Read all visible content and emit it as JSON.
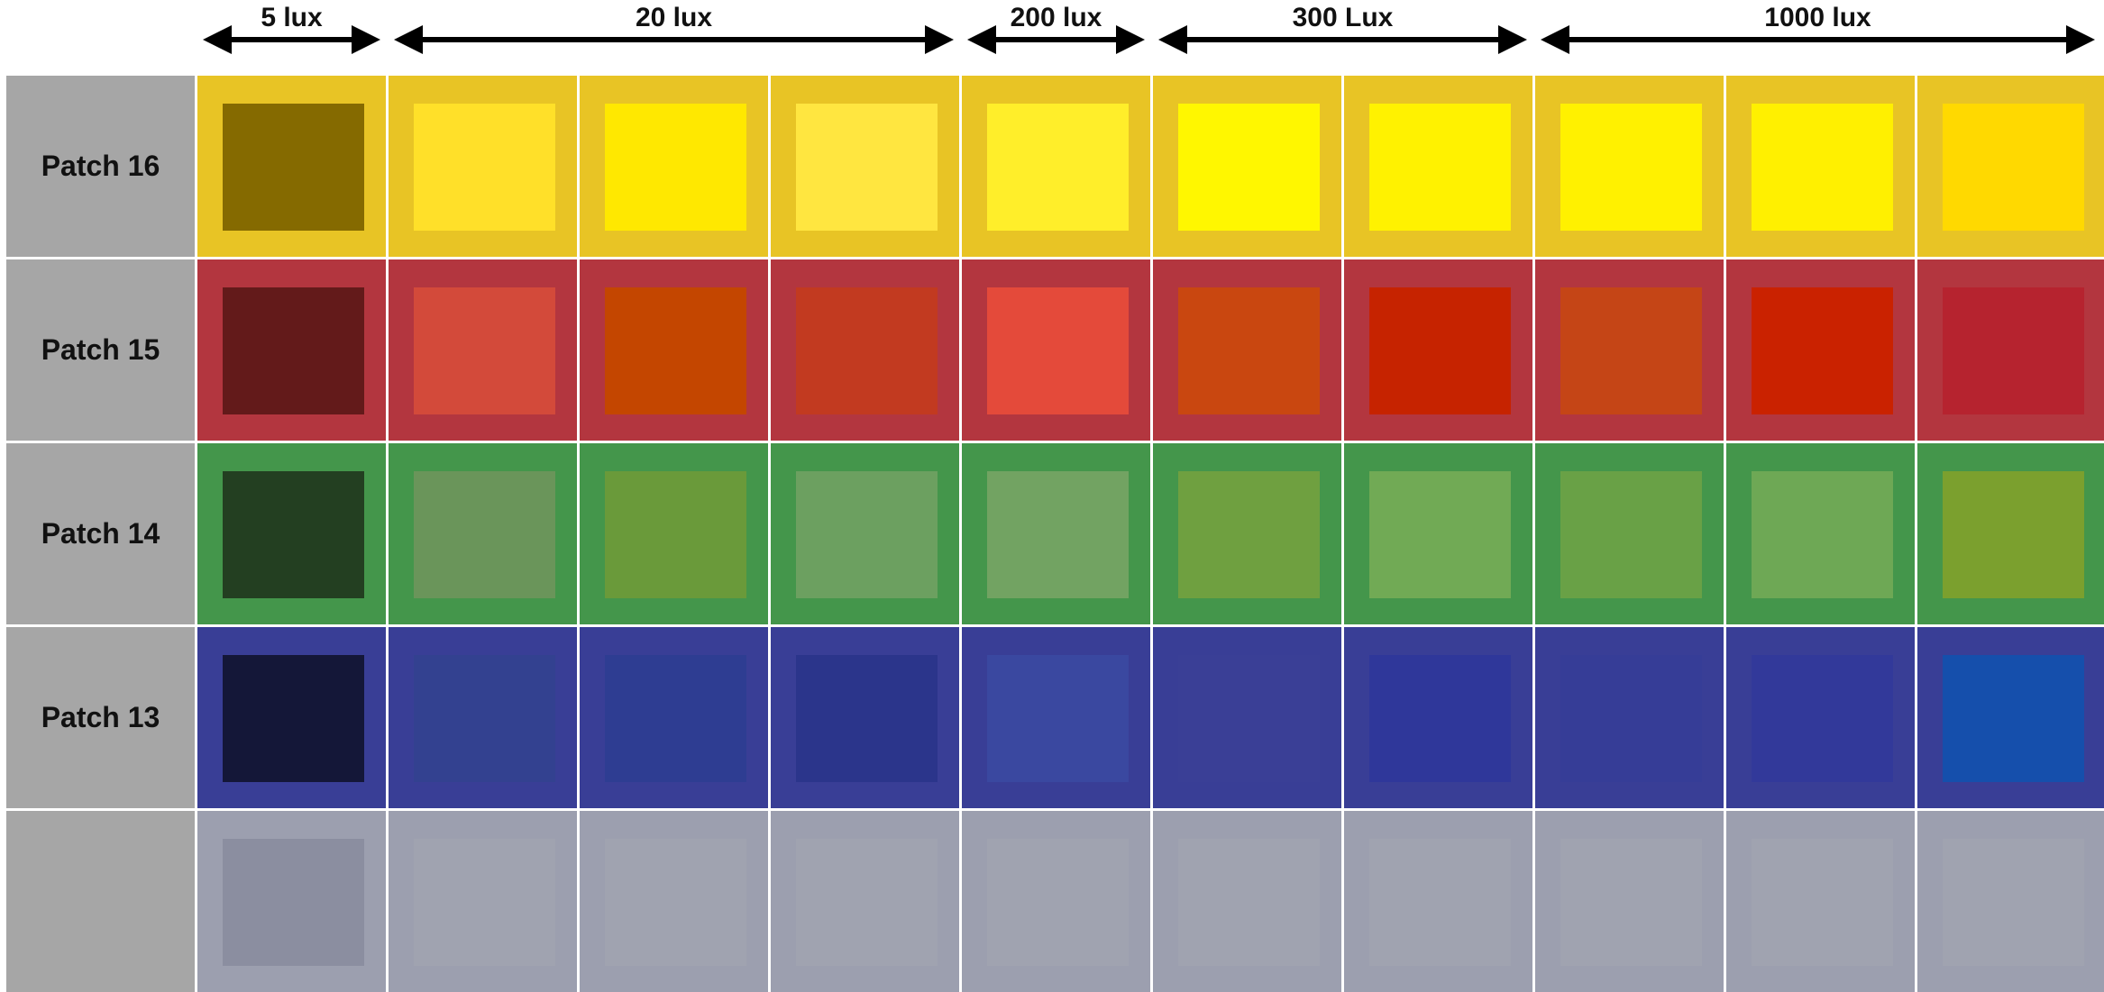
{
  "header_groups": [
    {
      "label": "5 lux",
      "span": 1
    },
    {
      "label": "20 lux",
      "span": 3
    },
    {
      "label": "200 lux",
      "span": 1
    },
    {
      "label": "300 Lux",
      "span": 2
    },
    {
      "label": "1000 lux",
      "span": 3
    }
  ],
  "rows": [
    {
      "label": "Patch 16",
      "border_color": "#e8c425",
      "inner_colors": [
        "#856a00",
        "#ffe029",
        "#ffe800",
        "#ffe640",
        "#ffee2a",
        "#fff700",
        "#fff200",
        "#fff100",
        "#fff000",
        "#ffd900"
      ]
    },
    {
      "label": "Patch 15",
      "border_color": "#b3363f",
      "inner_colors": [
        "#631a1a",
        "#d34a3a",
        "#c44600",
        "#c23a20",
        "#e44a3a",
        "#c94710",
        "#c62300",
        "#c54516",
        "#ca2200",
        "#b6232f"
      ]
    },
    {
      "label": "Patch 14",
      "border_color": "#44964b",
      "inner_colors": [
        "#233f21",
        "#6a955a",
        "#6a9a3a",
        "#6ca060",
        "#72a362",
        "#6fa040",
        "#71aa55",
        "#69a146",
        "#6ea855",
        "#7ba02e"
      ]
    },
    {
      "label": "Patch 13",
      "border_color": "#393e96",
      "inner_colors": [
        "#141738",
        "#334190",
        "#2e3d92",
        "#2b358b",
        "#3a48a0",
        "#3a3f96",
        "#2f379a",
        "#363d97",
        "#32399a",
        "#154fac"
      ]
    },
    {
      "label": "",
      "border_color": "#9c9faf",
      "inner_colors": [
        "#8b8ea0",
        "#a0a3b0",
        "#a0a3b0",
        "#a0a3b0",
        "#a0a3b0",
        "#a0a3b0",
        "#a0a3b0",
        "#a0a3b0",
        "#a0a3b0",
        "#a0a3b0"
      ]
    }
  ]
}
